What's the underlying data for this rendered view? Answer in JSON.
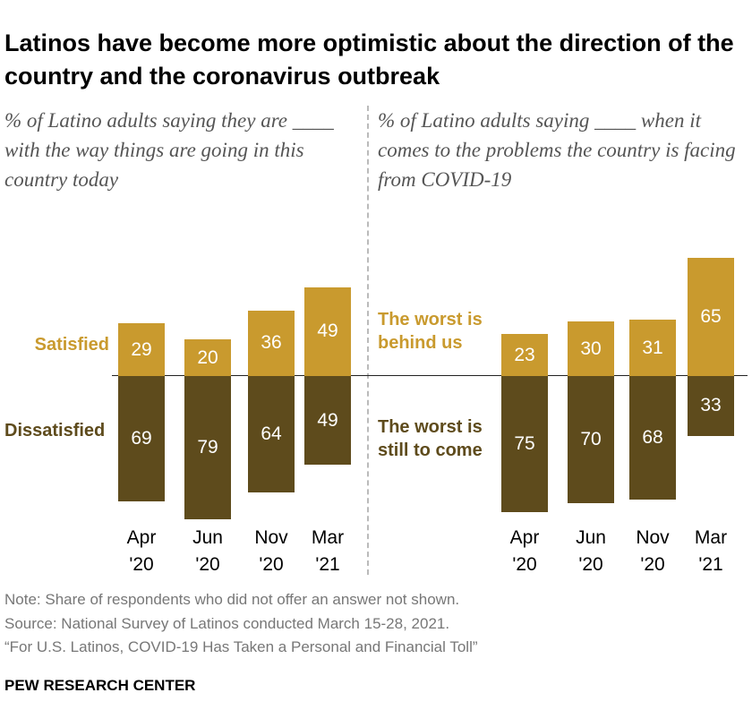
{
  "title": "Latinos have become more optimistic about the direction of the country and the coronavirus outbreak",
  "chart_data": [
    {
      "type": "bar",
      "subtitle": "% of Latino adults saying they are ____ with the way things are going in this country today",
      "categories": [
        "Apr '20",
        "Jun '20",
        "Nov '20",
        "Mar '21"
      ],
      "series": [
        {
          "name": "Satisfied",
          "color": "#c99a2e",
          "side": "above",
          "values": [
            29,
            20,
            36,
            49
          ]
        },
        {
          "name": "Dissatisfied",
          "color": "#5e4b1c",
          "side": "below",
          "values": [
            69,
            79,
            64,
            49
          ]
        }
      ]
    },
    {
      "type": "bar",
      "subtitle": "% of Latino adults saying ____ when it comes to the problems the country is facing from COVID-19",
      "categories": [
        "Apr '20",
        "Jun '20",
        "Nov '20",
        "Mar '21"
      ],
      "series": [
        {
          "name": "The worst is behind us",
          "color": "#c99a2e",
          "side": "above",
          "values": [
            23,
            30,
            31,
            65
          ]
        },
        {
          "name": "The worst is still to come",
          "color": "#5e4b1c",
          "side": "below",
          "values": [
            75,
            70,
            68,
            33
          ]
        }
      ]
    }
  ],
  "notes": [
    "Note: Share of respondents who did not offer an answer not shown.",
    "Source: National Survey of Latinos conducted March 15-28, 2021.",
    "“For U.S. Latinos, COVID-19 Has Taken a Personal and Financial Toll”"
  ],
  "org": "PEW RESEARCH CENTER"
}
